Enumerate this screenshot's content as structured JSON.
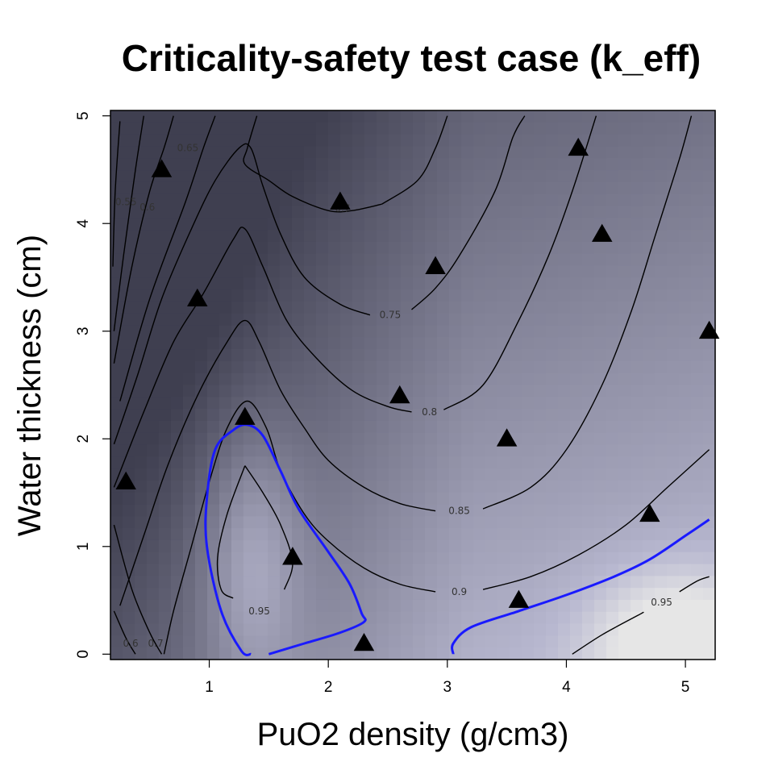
{
  "chart_data": {
    "type": "heatmap",
    "title": "Criticality-safety test case (k_eff)",
    "xlabel": "PuO2 density (g/cm3)",
    "ylabel": "Water thickness (cm)",
    "xlim": [
      0.17,
      5.25
    ],
    "ylim": [
      -0.05,
      5.05
    ],
    "x_ticks": [
      "1",
      "2",
      "3",
      "4",
      "5"
    ],
    "y_ticks": [
      "0",
      "1",
      "2",
      "3",
      "4",
      "5"
    ],
    "colormap": {
      "low": "#3f3f50",
      "mid": "#b8b8d0",
      "high": "#e6e6e6"
    },
    "contour_color": "#000000",
    "critical_contour_color": "#1a1aff",
    "critical_level": 0.94,
    "contours": [
      {
        "level": 0.55,
        "label": "0.55",
        "label_at": [
          0.3,
          4.2
        ],
        "points": [
          [
            0.25,
            4.95
          ],
          [
            0.21,
            4.3
          ],
          [
            0.19,
            3.6
          ]
        ]
      },
      {
        "level": 0.6,
        "label": "0.6",
        "label_at": [
          0.48,
          4.15
        ],
        "points": [
          [
            0.45,
            5.0
          ],
          [
            0.38,
            4.5
          ],
          [
            0.28,
            3.7
          ],
          [
            0.2,
            3.0
          ]
        ]
      },
      {
        "level": 0.6,
        "label": "0.6",
        "label_at": [
          0.34,
          0.1
        ],
        "points": [
          [
            0.2,
            0.4
          ],
          [
            0.3,
            0.15
          ],
          [
            0.38,
            0.0
          ]
        ]
      },
      {
        "level": 0.65,
        "label": "0.65",
        "label_at": [
          0.82,
          4.7
        ],
        "points": [
          [
            0.7,
            5.0
          ],
          [
            0.62,
            4.7
          ],
          [
            0.5,
            4.3
          ],
          [
            0.35,
            3.6
          ],
          [
            0.2,
            2.7
          ]
        ]
      },
      {
        "level": 0.7,
        "label": "0.7",
        "label_at": [
          0.55,
          0.1
        ],
        "points": [
          [
            0.2,
            1.2
          ],
          [
            0.35,
            0.6
          ],
          [
            0.5,
            0.2
          ],
          [
            0.6,
            0.0
          ]
        ]
      },
      {
        "level": 0.7,
        "label": "0.7",
        "label_at": [
          2.12,
          4.14
        ],
        "points": [
          [
            1.05,
            5.0
          ],
          [
            0.95,
            4.7
          ],
          [
            0.8,
            4.2
          ],
          [
            0.5,
            3.3
          ],
          [
            0.25,
            2.35
          ]
        ]
      },
      {
        "level": 0.7,
        "label": "",
        "label_at": null,
        "points": [
          [
            1.4,
            5.0
          ],
          [
            1.32,
            4.7
          ],
          [
            1.3,
            4.55
          ],
          [
            1.5,
            4.4
          ],
          [
            1.7,
            4.25
          ],
          [
            2.0,
            4.12
          ],
          [
            2.2,
            4.12
          ],
          [
            2.45,
            4.18
          ]
        ]
      },
      {
        "level": 0.7,
        "label": "",
        "label_at": null,
        "points": [
          [
            2.45,
            4.18
          ],
          [
            2.75,
            4.4
          ],
          [
            2.9,
            4.7
          ],
          [
            3.0,
            5.0
          ]
        ]
      },
      {
        "level": 0.75,
        "label": "0.75",
        "label_at": [
          2.52,
          3.15
        ],
        "points": [
          [
            0.2,
            1.95
          ],
          [
            0.4,
            2.6
          ],
          [
            0.6,
            3.3
          ],
          [
            0.85,
            3.95
          ],
          [
            1.05,
            4.4
          ],
          [
            1.25,
            4.7
          ],
          [
            1.35,
            4.7
          ],
          [
            1.45,
            4.35
          ],
          [
            1.6,
            3.9
          ],
          [
            1.8,
            3.5
          ],
          [
            2.1,
            3.25
          ],
          [
            2.35,
            3.15
          ]
        ]
      },
      {
        "level": 0.75,
        "label": "",
        "label_at": null,
        "points": [
          [
            2.7,
            3.2
          ],
          [
            2.9,
            3.4
          ],
          [
            3.1,
            3.7
          ],
          [
            3.4,
            4.3
          ],
          [
            3.55,
            4.8
          ],
          [
            3.65,
            5.0
          ]
        ]
      },
      {
        "level": 0.8,
        "label": "0.8",
        "label_at": [
          2.85,
          2.25
        ],
        "points": [
          [
            0.2,
            1.55
          ],
          [
            0.45,
            2.25
          ],
          [
            0.7,
            2.9
          ],
          [
            0.95,
            3.35
          ],
          [
            1.2,
            3.85
          ],
          [
            1.3,
            3.95
          ],
          [
            1.45,
            3.6
          ],
          [
            1.65,
            3.1
          ],
          [
            1.9,
            2.75
          ],
          [
            2.2,
            2.45
          ],
          [
            2.5,
            2.3
          ],
          [
            2.7,
            2.25
          ]
        ]
      },
      {
        "level": 0.8,
        "label": "",
        "label_at": null,
        "points": [
          [
            2.97,
            2.27
          ],
          [
            3.3,
            2.5
          ],
          [
            3.6,
            3.1
          ],
          [
            3.85,
            3.7
          ],
          [
            4.05,
            4.3
          ],
          [
            4.25,
            5.0
          ]
        ]
      },
      {
        "level": 0.85,
        "label": "0.85",
        "label_at": [
          3.1,
          1.33
        ],
        "points": [
          [
            0.25,
            0.45
          ],
          [
            0.45,
            1.1
          ],
          [
            0.65,
            1.75
          ],
          [
            0.9,
            2.4
          ],
          [
            1.15,
            2.9
          ],
          [
            1.3,
            3.1
          ],
          [
            1.42,
            2.9
          ],
          [
            1.6,
            2.45
          ],
          [
            1.8,
            2.1
          ],
          [
            2.0,
            1.8
          ],
          [
            2.3,
            1.55
          ],
          [
            2.6,
            1.4
          ],
          [
            2.9,
            1.33
          ]
        ]
      },
      {
        "level": 0.85,
        "label": "",
        "label_at": null,
        "points": [
          [
            3.3,
            1.35
          ],
          [
            3.7,
            1.55
          ],
          [
            4.0,
            1.9
          ],
          [
            4.3,
            2.5
          ],
          [
            4.55,
            3.2
          ],
          [
            4.75,
            3.9
          ],
          [
            4.95,
            4.6
          ],
          [
            5.05,
            5.0
          ]
        ]
      },
      {
        "level": 0.9,
        "label": "0.9",
        "label_at": [
          3.1,
          0.58
        ],
        "points": [
          [
            0.62,
            0.0
          ],
          [
            0.7,
            0.4
          ],
          [
            0.85,
            1.0
          ],
          [
            1.0,
            1.6
          ],
          [
            1.15,
            2.1
          ],
          [
            1.32,
            2.35
          ],
          [
            1.48,
            2.1
          ],
          [
            1.6,
            1.7
          ],
          [
            1.8,
            1.3
          ],
          [
            2.0,
            1.05
          ],
          [
            2.3,
            0.8
          ],
          [
            2.6,
            0.65
          ],
          [
            2.9,
            0.58
          ]
        ]
      },
      {
        "level": 0.9,
        "label": "",
        "label_at": null,
        "points": [
          [
            3.3,
            0.6
          ],
          [
            3.7,
            0.72
          ],
          [
            4.1,
            0.92
          ],
          [
            4.5,
            1.2
          ],
          [
            4.85,
            1.55
          ],
          [
            5.2,
            1.9
          ]
        ]
      },
      {
        "level": 0.95,
        "label": "0.95",
        "label_at": [
          1.42,
          0.4
        ],
        "points": [
          [
            1.3,
            1.75
          ],
          [
            1.15,
            1.3
          ],
          [
            1.07,
            0.9
          ],
          [
            1.1,
            0.6
          ],
          [
            1.2,
            0.52
          ]
        ]
      },
      {
        "level": 0.95,
        "label": "",
        "label_at": null,
        "points": [
          [
            1.63,
            0.6
          ],
          [
            1.7,
            0.85
          ],
          [
            1.6,
            1.2
          ],
          [
            1.45,
            1.5
          ],
          [
            1.3,
            1.75
          ]
        ]
      },
      {
        "level": 0.95,
        "label": "0.95",
        "label_at": [
          4.8,
          0.48
        ],
        "points": [
          [
            4.05,
            0.0
          ],
          [
            4.3,
            0.18
          ],
          [
            4.6,
            0.36
          ],
          [
            4.65,
            0.39
          ]
        ]
      },
      {
        "level": 0.95,
        "label": "",
        "label_at": null,
        "points": [
          [
            4.95,
            0.58
          ],
          [
            5.1,
            0.68
          ],
          [
            5.2,
            0.72
          ]
        ]
      }
    ],
    "critical_contours": [
      {
        "points": [
          [
            1.35,
            0.0
          ],
          [
            1.27,
            0.03
          ],
          [
            1.1,
            0.4
          ],
          [
            0.98,
            1.0
          ],
          [
            0.98,
            1.45
          ],
          [
            1.05,
            1.9
          ],
          [
            1.2,
            2.08
          ],
          [
            1.32,
            2.13
          ],
          [
            1.45,
            2.03
          ],
          [
            1.6,
            1.7
          ],
          [
            1.75,
            1.35
          ],
          [
            2.0,
            0.95
          ],
          [
            2.18,
            0.65
          ],
          [
            2.28,
            0.38
          ],
          [
            2.3,
            0.3
          ],
          [
            2.1,
            0.2
          ],
          [
            1.8,
            0.1
          ],
          [
            1.5,
            0.0
          ]
        ]
      },
      {
        "points": [
          [
            3.05,
            0.0
          ],
          [
            3.05,
            0.1
          ],
          [
            3.2,
            0.25
          ],
          [
            3.6,
            0.4
          ],
          [
            4.0,
            0.55
          ],
          [
            4.4,
            0.72
          ],
          [
            4.7,
            0.88
          ],
          [
            5.0,
            1.1
          ],
          [
            5.2,
            1.25
          ]
        ]
      }
    ],
    "samples": [
      {
        "x": 0.3,
        "y": 1.6
      },
      {
        "x": 0.6,
        "y": 4.5
      },
      {
        "x": 0.9,
        "y": 3.3
      },
      {
        "x": 1.3,
        "y": 2.2
      },
      {
        "x": 1.7,
        "y": 0.9
      },
      {
        "x": 2.1,
        "y": 4.2
      },
      {
        "x": 2.3,
        "y": 0.1
      },
      {
        "x": 2.6,
        "y": 2.4
      },
      {
        "x": 2.9,
        "y": 3.6
      },
      {
        "x": 3.5,
        "y": 2.0
      },
      {
        "x": 3.6,
        "y": 0.5
      },
      {
        "x": 4.1,
        "y": 4.7
      },
      {
        "x": 4.3,
        "y": 3.9
      },
      {
        "x": 4.7,
        "y": 1.3
      },
      {
        "x": 5.2,
        "y": 3.0
      }
    ]
  }
}
